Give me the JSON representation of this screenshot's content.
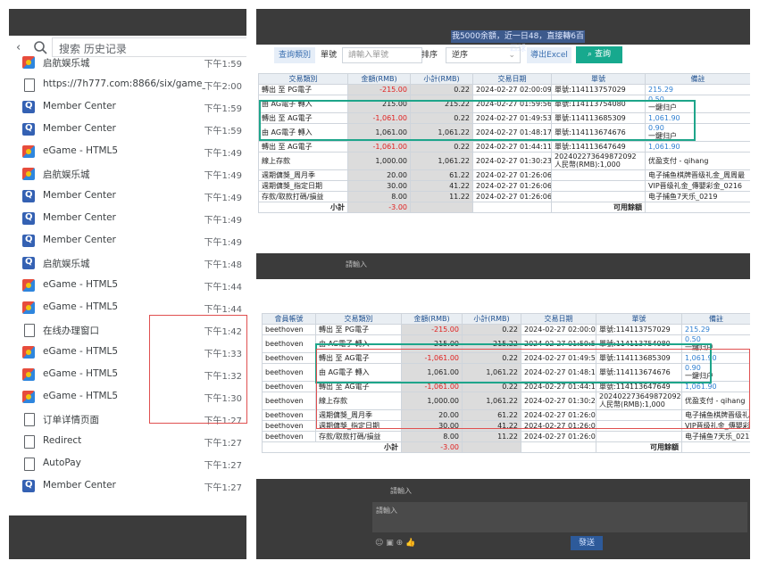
{
  "history": {
    "search_placeholder": "搜索 历史记录",
    "items": [
      {
        "icon": "eg",
        "title": "启航娱乐城",
        "time": "下午1:59",
        "partial": true
      },
      {
        "icon": "doc",
        "title": "https://7h777.com:8866/six/game_ent...",
        "time": "下午2:00"
      },
      {
        "icon": "q",
        "title": "Member Center",
        "time": "下午1:59"
      },
      {
        "icon": "q",
        "title": "Member Center",
        "time": "下午1:59"
      },
      {
        "icon": "eg",
        "title": "eGame - HTML5",
        "time": "下午1:49"
      },
      {
        "icon": "eg",
        "title": "启航娱乐城",
        "time": "下午1:49"
      },
      {
        "icon": "q",
        "title": "Member Center",
        "time": "下午1:49"
      },
      {
        "icon": "q",
        "title": "Member Center",
        "time": "下午1:49"
      },
      {
        "icon": "q",
        "title": "Member Center",
        "time": "下午1:49"
      },
      {
        "icon": "q",
        "title": "启航娱乐城",
        "time": "下午1:48"
      },
      {
        "icon": "eg",
        "title": "eGame - HTML5",
        "time": "下午1:44"
      },
      {
        "icon": "eg",
        "title": "eGame - HTML5",
        "time": "下午1:44"
      },
      {
        "icon": "doc",
        "title": "在线办理窗口",
        "time": "下午1:42"
      },
      {
        "icon": "eg",
        "title": "eGame - HTML5",
        "time": "下午1:33"
      },
      {
        "icon": "eg",
        "title": "eGame - HTML5",
        "time": "下午1:32"
      },
      {
        "icon": "eg",
        "title": "eGame - HTML5",
        "time": "下午1:30"
      },
      {
        "icon": "doc",
        "title": "订单详情页面",
        "time": "下午1:27"
      },
      {
        "icon": "doc",
        "title": "Redirect",
        "time": "下午1:27"
      },
      {
        "icon": "doc",
        "title": "AutoPay",
        "time": "下午1:27"
      },
      {
        "icon": "q",
        "title": "Member Center",
        "time": "下午1:27"
      }
    ]
  },
  "top": {
    "banner": "我5000余額，近一日48，直接轉6百匹球",
    "query_type_label": "查詢類別",
    "order_label": "單號",
    "order_placeholder": "請輸入單號",
    "sort_label": "排序",
    "sort_value": "逆序",
    "export_button": "導出Excel",
    "query_button": "查詢",
    "bottom_input_placeholder": "請輸入",
    "headers": [
      "交易類別",
      "金額(RMB)",
      "小計(RMB)",
      "交易日期",
      "單號",
      "備註"
    ],
    "rows": [
      {
        "type": "轉出 至 PG電子",
        "amount": "-215.00",
        "subtotal": "0.22",
        "date": "2024-02-27 02:00:09",
        "order": "單號:114113757029",
        "note": "215.29",
        "neg": true,
        "note_blue": true
      },
      {
        "type": "由 AG電子 轉入",
        "amount": "215.00",
        "subtotal": "215.22",
        "date": "2024-02-27 01:59:56",
        "order": "單號:114113754080",
        "note": "0.50",
        "note2": "一鍵归户",
        "neg": false,
        "note_blue": true
      },
      {
        "type": "轉出 至 AG電子",
        "amount": "-1,061.00",
        "subtotal": "0.22",
        "date": "2024-02-27 01:49:53",
        "order": "單號:114113685309",
        "note": "1,061.90",
        "neg": true,
        "note_blue": true
      },
      {
        "type": "由 AG電子 轉入",
        "amount": "1,061.00",
        "subtotal": "1,061.22",
        "date": "2024-02-27 01:48:17",
        "order": "單號:114113674676",
        "note": "0.90",
        "note2": "一鍵归户",
        "neg": false,
        "note_blue": true
      },
      {
        "type": "轉出 至 AG電子",
        "amount": "-1,061.00",
        "subtotal": "0.22",
        "date": "2024-02-27 01:44:11",
        "order": "單號:114113647649",
        "note": "1,061.90",
        "neg": true,
        "note_blue": true
      },
      {
        "type": "線上存款",
        "amount": "1,000.00",
        "subtotal": "1,061.22",
        "date": "2024-02-27 01:30:23",
        "order": "202402273649872092",
        "order2": "人民幣(RMB):1,000",
        "note": "优盈支付 - qihang",
        "neg": false,
        "note_blue": false
      },
      {
        "type": "週期傭獎_周月季",
        "amount": "20.00",
        "subtotal": "61.22",
        "date": "2024-02-27 01:26:06",
        "order": "",
        "note": "电子捕鱼棋牌晋级礼金_周周最",
        "neg": false,
        "note_blue": false
      },
      {
        "type": "週期傭獎_指定日期",
        "amount": "30.00",
        "subtotal": "41.22",
        "date": "2024-02-27 01:26:06",
        "order": "",
        "note": "VIP晋级礼金_傳嬰彩金_0216",
        "neg": false,
        "note_blue": false
      },
      {
        "type": "存款/取款打碼/損益",
        "amount": "8.00",
        "subtotal": "11.22",
        "date": "2024-02-27 01:26:06",
        "order": "",
        "note": "电子捕鱼7天乐_0219",
        "neg": false,
        "note_blue": false
      }
    ],
    "subtotal_label": "小計",
    "subtotal_value": "-3.00",
    "available_label": "可用餘額"
  },
  "bottom": {
    "headers": [
      "會員帳號",
      "交易類別",
      "金額(RMB)",
      "小計(RMB)",
      "交易日期",
      "單號",
      "備註"
    ],
    "member": "beethoven",
    "rows": [
      {
        "type": "轉出 至 PG電子",
        "amount": "-215.00",
        "subtotal": "0.22",
        "date": "2024-02-27 02:00:09",
        "order": "單號:114113757029",
        "note": "215.29",
        "neg": true,
        "note_blue": true
      },
      {
        "type": "由 AG電子 轉入",
        "amount": "215.00",
        "subtotal": "215.22",
        "date": "2024-02-27 01:59:56",
        "order": "單號:114113754080",
        "note": "0.50",
        "note2": "一鍵归户",
        "neg": false,
        "note_blue": true
      },
      {
        "type": "轉出 至 AG電子",
        "amount": "-1,061.00",
        "subtotal": "0.22",
        "date": "2024-02-27 01:49:53",
        "order": "單號:114113685309",
        "note": "1,061.90",
        "neg": true,
        "note_blue": true
      },
      {
        "type": "由 AG電子 轉入",
        "amount": "1,061.00",
        "subtotal": "1,061.22",
        "date": "2024-02-27 01:48:17",
        "order": "單號:114113674676",
        "note": "0.90",
        "note2": "一鍵归户",
        "neg": false,
        "note_blue": true
      },
      {
        "type": "轉出 至 AG電子",
        "amount": "-1,061.00",
        "subtotal": "0.22",
        "date": "2024-02-27 01:44:11",
        "order": "單號:114113647649",
        "note": "1,061.90",
        "neg": true,
        "note_blue": true
      },
      {
        "type": "線上存款",
        "amount": "1,000.00",
        "subtotal": "1,061.22",
        "date": "2024-02-27 01:30:23",
        "order": "202402273649872092",
        "order2": "人民幣(RMB):1,000",
        "note": "优盈支付 - qihang",
        "neg": false,
        "note_blue": false
      },
      {
        "type": "週期傭獎_周月季",
        "amount": "20.00",
        "subtotal": "61.22",
        "date": "2024-02-27 01:26:06",
        "order": "",
        "note": "电子捕鱼棋牌晋级礼金_周周最",
        "neg": false,
        "note_blue": false
      },
      {
        "type": "週期傭獎_指定日期",
        "amount": "30.00",
        "subtotal": "41.22",
        "date": "2024-02-27 01:26:06",
        "order": "",
        "note": "VIP晋级礼金_傳嬰彩金_0216",
        "neg": false,
        "note_blue": false
      },
      {
        "type": "存款/取款打碼/損益",
        "amount": "8.00",
        "subtotal": "11.22",
        "date": "2024-02-27 01:26:06",
        "order": "",
        "note": "电子捕鱼7天乐_0219",
        "neg": false,
        "note_blue": false
      }
    ],
    "subtotal_label": "小計",
    "subtotal_value": "-3.00",
    "available_label": "可用餘額",
    "chat_placeholder_1": "請輸入",
    "chat_placeholder_2": "請輸入",
    "send_button": "發送"
  },
  "colors": {
    "accent": "#1ea58a",
    "neg": "#e02020",
    "link": "#2f7fd1",
    "highlight": "#e05050"
  }
}
